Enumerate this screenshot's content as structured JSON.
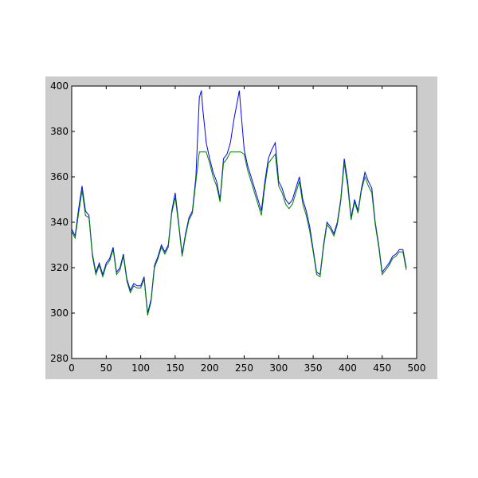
{
  "figure": {
    "background": "#ffffff",
    "frame_color": "#cccccc",
    "axes_background": "#ffffff"
  },
  "chart_data": {
    "type": "line",
    "title": "",
    "xlabel": "",
    "ylabel": "",
    "xlim": [
      0,
      500
    ],
    "ylim": [
      280,
      400
    ],
    "xticks": [
      0,
      50,
      100,
      150,
      200,
      250,
      300,
      350,
      400,
      450,
      500
    ],
    "yticks": [
      280,
      300,
      320,
      340,
      360,
      380,
      400
    ],
    "xtick_labels": [
      "0",
      "50",
      "100",
      "150",
      "200",
      "250",
      "300",
      "350",
      "400",
      "450",
      "500"
    ],
    "ytick_labels": [
      "280",
      "300",
      "320",
      "340",
      "360",
      "380",
      "400"
    ],
    "grid": false,
    "legend": "none",
    "x": [
      0,
      5,
      10,
      15,
      20,
      25,
      30,
      35,
      40,
      45,
      50,
      55,
      60,
      65,
      70,
      75,
      80,
      85,
      90,
      95,
      100,
      105,
      110,
      115,
      120,
      125,
      130,
      135,
      140,
      145,
      150,
      155,
      160,
      165,
      170,
      175,
      180,
      185,
      188,
      190,
      195,
      200,
      205,
      210,
      215,
      220,
      225,
      230,
      235,
      240,
      243,
      245,
      250,
      255,
      260,
      265,
      270,
      275,
      280,
      285,
      290,
      295,
      300,
      305,
      310,
      315,
      320,
      325,
      330,
      335,
      340,
      345,
      350,
      355,
      360,
      365,
      370,
      375,
      380,
      385,
      390,
      395,
      400,
      405,
      410,
      415,
      420,
      425,
      430,
      435,
      440,
      445,
      450,
      455,
      460,
      465,
      470,
      475,
      480,
      485
    ],
    "series": [
      {
        "color": "#0000ff",
        "values": [
          337,
          334,
          346,
          356,
          345,
          343,
          326,
          318,
          322,
          317,
          322,
          324,
          329,
          318,
          320,
          326,
          315,
          310,
          313,
          312,
          312,
          316,
          300,
          306,
          321,
          325,
          330,
          327,
          330,
          345,
          353,
          340,
          326,
          335,
          342,
          345,
          360,
          395,
          398,
          390,
          375,
          368,
          362,
          358,
          350,
          368,
          370,
          375,
          385,
          393,
          398,
          390,
          372,
          365,
          360,
          355,
          350,
          345,
          358,
          368,
          372,
          375,
          358,
          355,
          350,
          348,
          350,
          355,
          360,
          350,
          345,
          338,
          328,
          318,
          317,
          330,
          340,
          338,
          335,
          340,
          350,
          368,
          358,
          342,
          350,
          345,
          355,
          362,
          358,
          355,
          340,
          330,
          318,
          320,
          322,
          325,
          326,
          328,
          328,
          320
        ]
      },
      {
        "color": "#007f00",
        "values": [
          336,
          333,
          344,
          354,
          343,
          342,
          325,
          317,
          321,
          316,
          321,
          323,
          328,
          317,
          319,
          325,
          314,
          309,
          312,
          311,
          311,
          315,
          299,
          305,
          320,
          324,
          329,
          326,
          329,
          344,
          351,
          339,
          325,
          334,
          341,
          344,
          358,
          371,
          371,
          371,
          371,
          366,
          360,
          356,
          349,
          366,
          368,
          371,
          371,
          371,
          371,
          371,
          370,
          363,
          358,
          353,
          348,
          343,
          356,
          366,
          368,
          370,
          356,
          353,
          348,
          346,
          348,
          353,
          358,
          348,
          343,
          336,
          327,
          317,
          316,
          329,
          339,
          337,
          334,
          339,
          349,
          366,
          356,
          341,
          349,
          344,
          354,
          360,
          356,
          353,
          339,
          329,
          317,
          319,
          321,
          324,
          325,
          327,
          327,
          319
        ]
      }
    ]
  }
}
